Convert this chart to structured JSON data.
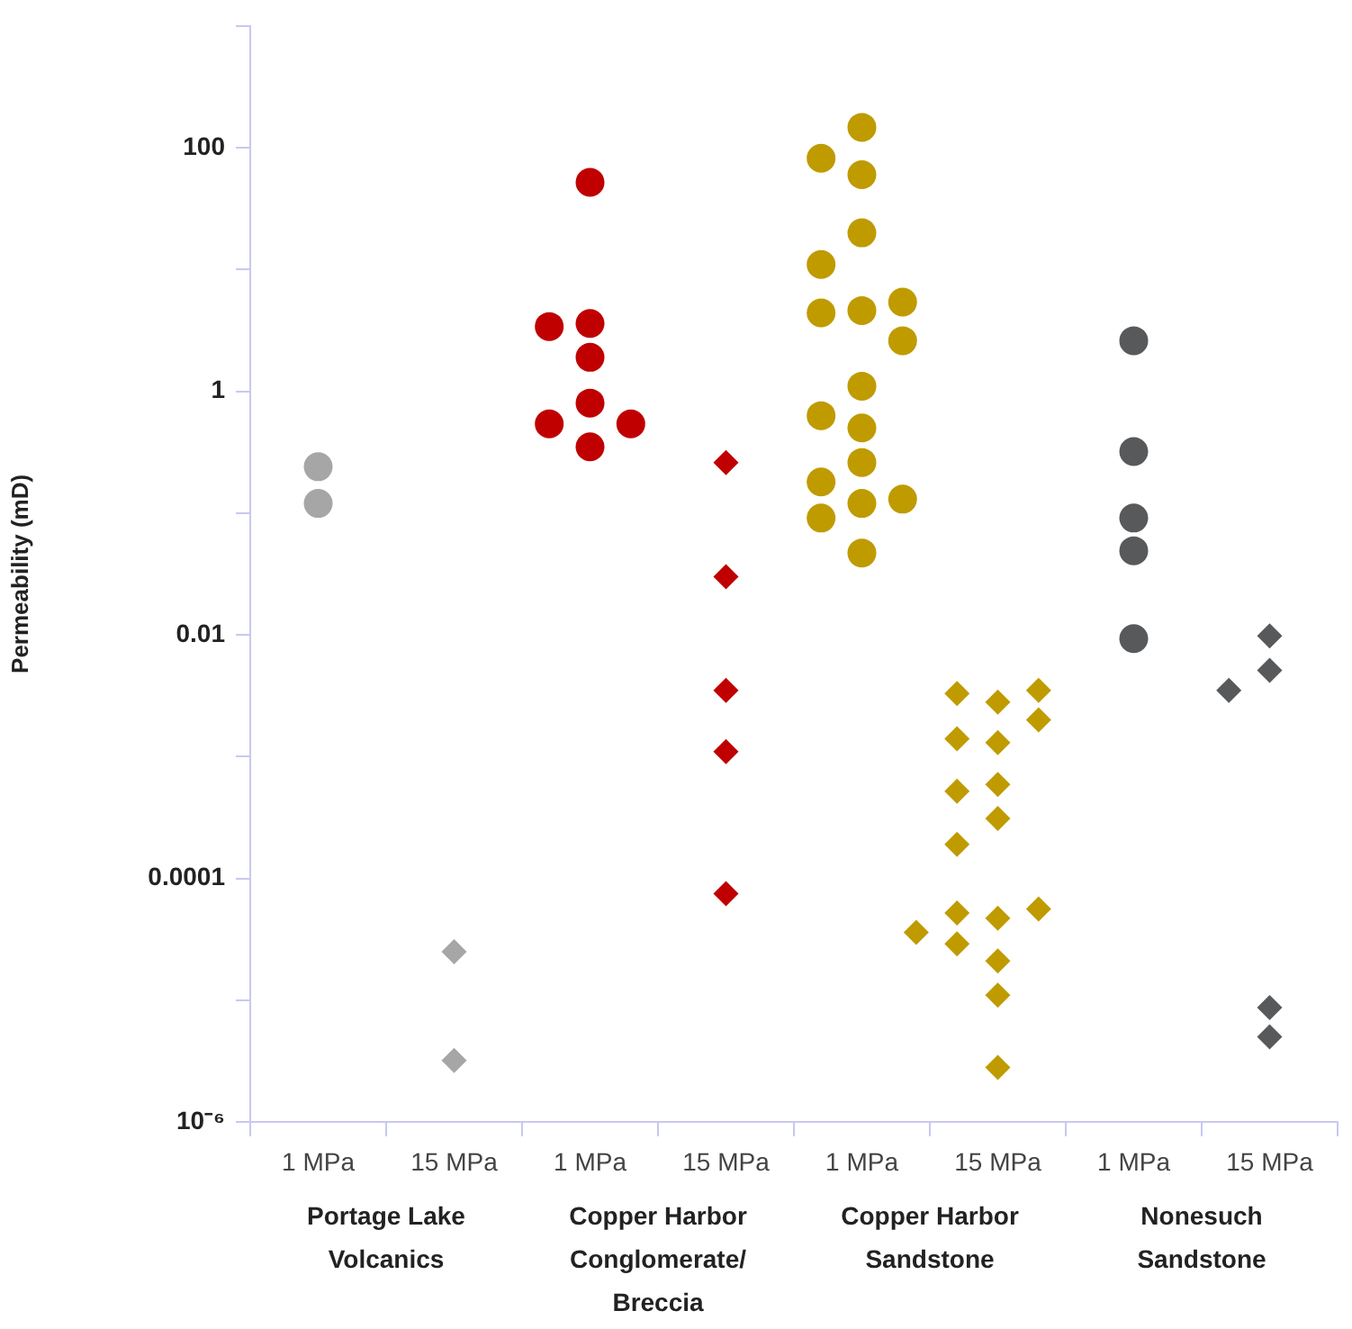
{
  "chart_data": {
    "type": "scatter",
    "ylabel": "Permeability (mD)",
    "log": "y",
    "grid": false,
    "legend": false,
    "categories": [
      "Portage Lake Volcanics",
      "Copper Harbor Conglomerate/ Breccia",
      "Copper Harbor Sandstone",
      "Nonesuch Sandstone"
    ],
    "annotations": [
      "1 MPa",
      "15 MPa",
      "1 MPa",
      "15 MPa",
      "1 MPa",
      "15 MPa",
      "1 MPa",
      "15 MPa"
    ],
    "ylim": [
      1e-06,
      1000
    ],
    "yticks": [
      {
        "value": 1e-06,
        "label": "10⁻⁶"
      },
      {
        "value": 1e-05,
        "label": null
      },
      {
        "value": 0.0001,
        "label": "0.0001"
      },
      {
        "value": 0.001,
        "label": null
      },
      0.01,
      {
        "value": 0.1,
        "label": null
      },
      1,
      {
        "value": 10,
        "label": null
      },
      100,
      {
        "value": 1000,
        "label": null
      }
    ],
    "series": [
      {
        "marker": "circle",
        "x": [
          "Portage Lake Volcanics",
          "Portage Lake Volcanics",
          "Copper Harbor Conglomerate/ Breccia",
          "Copper Harbor Conglomerate/ Breccia",
          "Copper Harbor Conglomerate/ Breccia",
          "Copper Harbor Conglomerate/ Breccia",
          "Copper Harbor Conglomerate/ Breccia",
          "Copper Harbor Conglomerate/ Breccia",
          "Copper Harbor Conglomerate/ Breccia",
          "Copper Harbor Conglomerate/ Breccia",
          "Copper Harbor Sandstone",
          "Copper Harbor Sandstone",
          "Copper Harbor Sandstone",
          "Copper Harbor Sandstone",
          "Copper Harbor Sandstone",
          "Copper Harbor Sandstone",
          "Copper Harbor Sandstone",
          "Copper Harbor Sandstone",
          "Copper Harbor Sandstone",
          "Copper Harbor Sandstone",
          "Copper Harbor Sandstone",
          "Copper Harbor Sandstone",
          "Copper Harbor Sandstone",
          "Copper Harbor Sandstone",
          "Copper Harbor Sandstone",
          "Copper Harbor Sandstone",
          "Copper Harbor Sandstone",
          "Copper Harbor Sandstone",
          "Nonesuch Sandstone",
          "Nonesuch Sandstone",
          "Nonesuch Sandstone",
          "Nonesuch Sandstone",
          "Nonesuch Sandstone"
        ],
        "values": [
          0.24,
          0.12,
          52,
          1.9,
          3.4,
          3.6,
          0.8,
          0.54,
          0.54,
          0.35,
          147,
          60,
          82,
          20,
          11,
          4.6,
          4.4,
          5.4,
          2.6,
          1.1,
          0.63,
          0.5,
          0.26,
          0.18,
          0.12,
          0.13,
          0.091,
          0.047,
          2.6,
          0.32,
          0.091,
          0.049,
          0.0093
        ],
        "colors": [
          "#a6a6a6",
          "#a6a6a6",
          "#c00000",
          "#c00000",
          "#c00000",
          "#c00000",
          "#c00000",
          "#c00000",
          "#c00000",
          "#c00000",
          "#bf9b00",
          "#bf9b00",
          "#bf9b00",
          "#bf9b00",
          "#bf9b00",
          "#bf9b00",
          "#bf9b00",
          "#bf9b00",
          "#bf9b00",
          "#bf9b00",
          "#bf9b00",
          "#bf9b00",
          "#bf9b00",
          "#bf9b00",
          "#bf9b00",
          "#bf9b00",
          "#bf9b00",
          "#bf9b00",
          "#58595b",
          "#58595b",
          "#58595b",
          "#58595b",
          "#58595b"
        ]
      },
      {
        "marker": "diamond",
        "x": [
          "Portage Lake Volcanics",
          "Portage Lake Volcanics",
          "Copper Harbor Conglomerate/ Breccia",
          "Copper Harbor Conglomerate/ Breccia",
          "Copper Harbor Conglomerate/ Breccia",
          "Copper Harbor Conglomerate/ Breccia",
          "Copper Harbor Conglomerate/ Breccia",
          "Copper Harbor Sandstone",
          "Copper Harbor Sandstone",
          "Copper Harbor Sandstone",
          "Copper Harbor Sandstone",
          "Copper Harbor Sandstone",
          "Copper Harbor Sandstone",
          "Copper Harbor Sandstone",
          "Copper Harbor Sandstone",
          "Copper Harbor Sandstone",
          "Copper Harbor Sandstone",
          "Copper Harbor Sandstone",
          "Copper Harbor Sandstone",
          "Copper Harbor Sandstone",
          "Copper Harbor Sandstone",
          "Copper Harbor Sandstone",
          "Copper Harbor Sandstone",
          "Copper Harbor Sandstone",
          "Copper Harbor Sandstone",
          "Nonesuch Sandstone",
          "Nonesuch Sandstone",
          "Nonesuch Sandstone",
          "Nonesuch Sandstone",
          "Nonesuch Sandstone"
        ],
        "values": [
          2.5e-05,
          3.2e-06,
          0.26,
          0.03,
          0.0035,
          0.0011,
          7.5e-05,
          0.0028,
          0.0033,
          0.0035,
          0.002,
          0.0013,
          0.0014,
          0.00059,
          0.00052,
          0.00031,
          0.00019,
          4.7e-05,
          5.2e-05,
          5.6e-05,
          3.6e-05,
          2.9e-05,
          2.1e-05,
          1.1e-05,
          2.8e-06,
          0.0098,
          0.0051,
          0.0035,
          8.7e-06,
          5e-06
        ],
        "colors": [
          "#a6a6a6",
          "#a6a6a6",
          "#c00000",
          "#c00000",
          "#c00000",
          "#c00000",
          "#c00000",
          "#bf9b00",
          "#bf9b00",
          "#bf9b00",
          "#bf9b00",
          "#bf9b00",
          "#bf9b00",
          "#bf9b00",
          "#bf9b00",
          "#bf9b00",
          "#bf9b00",
          "#bf9b00",
          "#bf9b00",
          "#bf9b00",
          "#bf9b00",
          "#bf9b00",
          "#bf9b00",
          "#bf9b00",
          "#bf9b00",
          "#58595b",
          "#58595b",
          "#58595b",
          "#58595b",
          "#58595b"
        ]
      }
    ]
  }
}
